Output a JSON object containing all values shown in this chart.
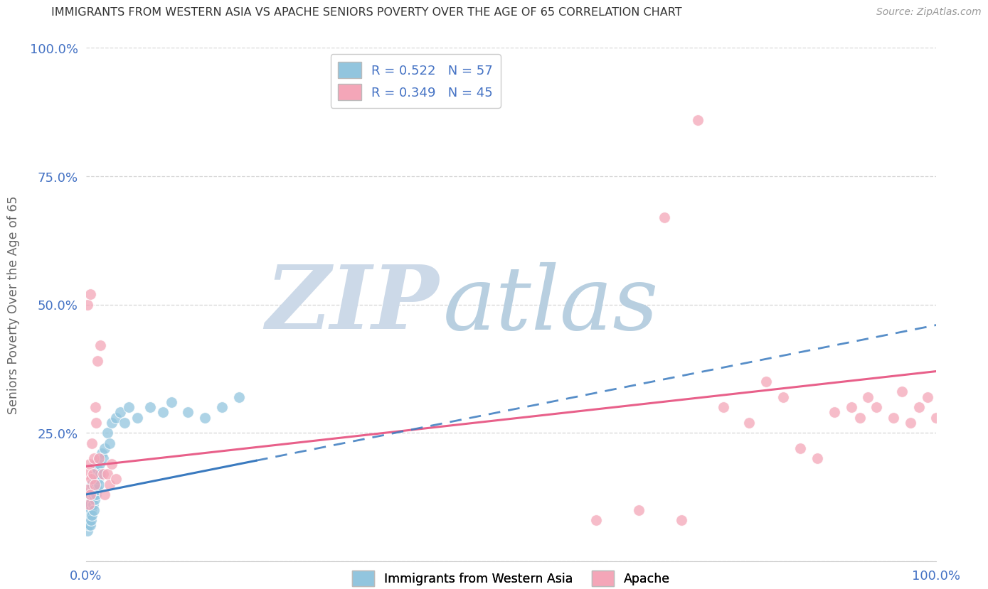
{
  "title": "IMMIGRANTS FROM WESTERN ASIA VS APACHE SENIORS POVERTY OVER THE AGE OF 65 CORRELATION CHART",
  "source": "Source: ZipAtlas.com",
  "ylabel": "Seniors Poverty Over the Age of 65",
  "R_blue": 0.522,
  "N_blue": 57,
  "R_pink": 0.349,
  "N_pink": 45,
  "blue_color": "#92c5de",
  "pink_color": "#f4a6b8",
  "blue_line_color": "#3a7abf",
  "pink_line_color": "#e8608a",
  "background_color": "#ffffff",
  "grid_color": "#cccccc",
  "title_color": "#333333",
  "axis_label_color": "#666666",
  "tick_color": "#4472C4",
  "watermark_zip_color": "#ccd9e8",
  "watermark_atlas_color": "#b8cfe0",
  "blue_scatter_x": [
    0.001,
    0.001,
    0.002,
    0.002,
    0.002,
    0.003,
    0.003,
    0.003,
    0.003,
    0.004,
    0.004,
    0.004,
    0.005,
    0.005,
    0.005,
    0.005,
    0.006,
    0.006,
    0.006,
    0.007,
    0.007,
    0.007,
    0.008,
    0.008,
    0.009,
    0.009,
    0.01,
    0.01,
    0.011,
    0.011,
    0.012,
    0.012,
    0.013,
    0.013,
    0.014,
    0.015,
    0.015,
    0.016,
    0.017,
    0.018,
    0.02,
    0.022,
    0.025,
    0.028,
    0.03,
    0.035,
    0.04,
    0.045,
    0.05,
    0.06,
    0.075,
    0.09,
    0.1,
    0.12,
    0.14,
    0.16,
    0.18
  ],
  "blue_scatter_y": [
    0.07,
    0.1,
    0.08,
    0.12,
    0.06,
    0.09,
    0.11,
    0.07,
    0.13,
    0.08,
    0.12,
    0.1,
    0.09,
    0.13,
    0.07,
    0.11,
    0.1,
    0.14,
    0.08,
    0.12,
    0.15,
    0.09,
    0.13,
    0.11,
    0.14,
    0.1,
    0.16,
    0.12,
    0.15,
    0.19,
    0.17,
    0.13,
    0.18,
    0.14,
    0.16,
    0.2,
    0.15,
    0.19,
    0.17,
    0.21,
    0.2,
    0.22,
    0.25,
    0.23,
    0.27,
    0.28,
    0.29,
    0.27,
    0.3,
    0.28,
    0.3,
    0.29,
    0.31,
    0.29,
    0.28,
    0.3,
    0.32
  ],
  "pink_scatter_x": [
    0.001,
    0.002,
    0.002,
    0.003,
    0.004,
    0.005,
    0.005,
    0.006,
    0.007,
    0.008,
    0.009,
    0.01,
    0.011,
    0.012,
    0.013,
    0.015,
    0.017,
    0.02,
    0.022,
    0.025,
    0.028,
    0.03,
    0.035,
    0.6,
    0.65,
    0.7,
    0.75,
    0.78,
    0.8,
    0.82,
    0.84,
    0.86,
    0.88,
    0.9,
    0.91,
    0.92,
    0.93,
    0.95,
    0.96,
    0.97,
    0.98,
    0.99,
    1.0,
    0.72,
    0.68
  ],
  "pink_scatter_y": [
    0.17,
    0.14,
    0.5,
    0.11,
    0.19,
    0.13,
    0.52,
    0.16,
    0.23,
    0.17,
    0.2,
    0.15,
    0.3,
    0.27,
    0.39,
    0.2,
    0.42,
    0.17,
    0.13,
    0.17,
    0.15,
    0.19,
    0.16,
    0.08,
    0.1,
    0.08,
    0.3,
    0.27,
    0.35,
    0.32,
    0.22,
    0.2,
    0.29,
    0.3,
    0.28,
    0.32,
    0.3,
    0.28,
    0.33,
    0.27,
    0.3,
    0.32,
    0.28,
    0.86,
    0.67
  ],
  "xlim": [
    0.0,
    1.0
  ],
  "ylim": [
    0.0,
    1.0
  ],
  "xticks": [
    0.0,
    0.25,
    0.5,
    0.75,
    1.0
  ],
  "yticks": [
    0.0,
    0.25,
    0.5,
    0.75,
    1.0
  ],
  "xticklabels": [
    "0.0%",
    "",
    "",
    "",
    "100.0%"
  ],
  "yticklabels": [
    "",
    "25.0%",
    "50.0%",
    "75.0%",
    "100.0%"
  ],
  "blue_line_x0": 0.0,
  "blue_line_y0": 0.13,
  "blue_line_x1": 1.0,
  "blue_line_y1": 0.46,
  "pink_line_x0": 0.0,
  "pink_line_y0": 0.185,
  "pink_line_x1": 1.0,
  "pink_line_y1": 0.37
}
